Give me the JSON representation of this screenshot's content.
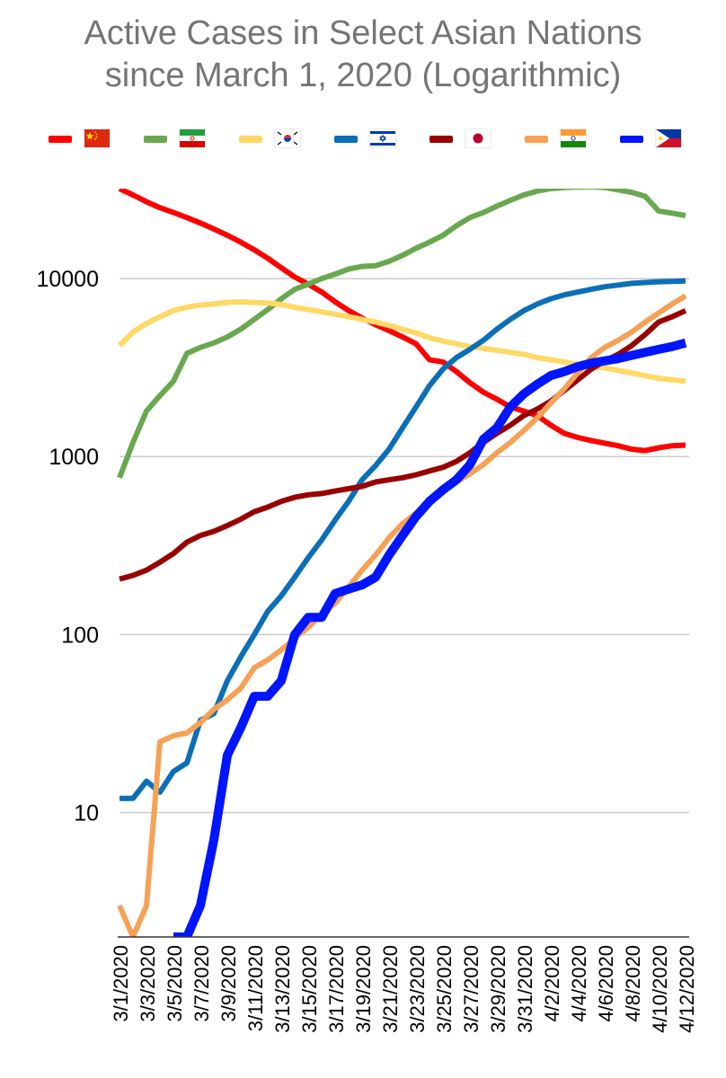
{
  "chart_data": {
    "type": "line",
    "title": "Active Cases in Select Asian Nations since March 1, 2020 (Logarithmic)",
    "title_lines": [
      "Active Cases in Select Asian Nations",
      "since March 1, 2020 (Logarithmic)"
    ],
    "scale": "log",
    "ylim": [
      2,
      32000
    ],
    "yticks": [
      10,
      100,
      1000,
      10000
    ],
    "ytick_labels": [
      "10",
      "100",
      "1000",
      "10000"
    ],
    "grid": true,
    "legend_position": "top",
    "x": [
      "3/1/2020",
      "3/2/2020",
      "3/3/2020",
      "3/4/2020",
      "3/5/2020",
      "3/6/2020",
      "3/7/2020",
      "3/8/2020",
      "3/9/2020",
      "3/10/2020",
      "3/11/2020",
      "3/12/2020",
      "3/13/2020",
      "3/14/2020",
      "3/15/2020",
      "3/16/2020",
      "3/17/2020",
      "3/18/2020",
      "3/19/2020",
      "3/20/2020",
      "3/21/2020",
      "3/22/2020",
      "3/23/2020",
      "3/24/2020",
      "3/25/2020",
      "3/26/2020",
      "3/27/2020",
      "3/28/2020",
      "3/29/2020",
      "3/30/2020",
      "3/31/2020",
      "4/1/2020",
      "4/2/2020",
      "4/3/2020",
      "4/4/2020",
      "4/5/2020",
      "4/6/2020",
      "4/7/2020",
      "4/8/2020",
      "4/9/2020",
      "4/10/2020",
      "4/11/2020",
      "4/12/2020"
    ],
    "xtick_labels": [
      "3/1/2020",
      "3/3/2020",
      "3/5/2020",
      "3/7/2020",
      "3/9/2020",
      "3/11/2020",
      "3/13/2020",
      "3/15/2020",
      "3/17/2020",
      "3/19/2020",
      "3/21/2020",
      "3/23/2020",
      "3/25/2020",
      "3/27/2020",
      "3/29/2020",
      "3/31/2020",
      "4/2/2020",
      "4/4/2020",
      "4/6/2020",
      "4/8/2020",
      "4/10/2020",
      "4/12/2020"
    ],
    "series": [
      {
        "flag": "china",
        "color": "#ff0000",
        "values": [
          32000,
          29500,
          27000,
          25000,
          23500,
          22000,
          20500,
          19000,
          17500,
          16000,
          14500,
          13000,
          11500,
          10200,
          9300,
          8400,
          7400,
          6600,
          6000,
          5500,
          5100,
          4700,
          4300,
          3500,
          3400,
          3000,
          2600,
          2300,
          2100,
          1900,
          1800,
          1700,
          1500,
          1350,
          1280,
          1230,
          1190,
          1150,
          1100,
          1080,
          1120,
          1150,
          1160
        ]
      },
      {
        "flag": "iran",
        "color": "#6aa84f",
        "values": [
          760,
          1200,
          1800,
          2200,
          2650,
          3800,
          4100,
          4350,
          4700,
          5200,
          5900,
          6700,
          7700,
          8700,
          9300,
          10000,
          10600,
          11300,
          11700,
          11800,
          12500,
          13500,
          14800,
          16000,
          17500,
          19800,
          22000,
          23500,
          25500,
          27500,
          29500,
          31000,
          32000,
          32500,
          32700,
          32800,
          32500,
          31500,
          30500,
          29000,
          24000,
          23300,
          22600
        ]
      },
      {
        "flag": "south-korea",
        "color": "#ffd966",
        "values": [
          4200,
          5000,
          5600,
          6100,
          6600,
          6900,
          7100,
          7200,
          7350,
          7400,
          7350,
          7300,
          7150,
          6900,
          6700,
          6500,
          6300,
          6100,
          5900,
          5700,
          5450,
          5200,
          4950,
          4650,
          4450,
          4300,
          4150,
          4050,
          3950,
          3850,
          3750,
          3600,
          3500,
          3400,
          3300,
          3200,
          3150,
          3050,
          2950,
          2850,
          2750,
          2700,
          2650
        ]
      },
      {
        "flag": "israel",
        "color": "#0b6fb8",
        "values": [
          12,
          12,
          15,
          13,
          17,
          19,
          33,
          36,
          55,
          75,
          100,
          135,
          165,
          210,
          270,
          340,
          440,
          560,
          740,
          890,
          1100,
          1450,
          1900,
          2500,
          3100,
          3600,
          4000,
          4500,
          5200,
          5900,
          6600,
          7200,
          7700,
          8100,
          8400,
          8700,
          9000,
          9200,
          9400,
          9500,
          9600,
          9650,
          9700
        ]
      },
      {
        "flag": "japan",
        "color": "#990000",
        "values": [
          205,
          215,
          230,
          255,
          285,
          330,
          360,
          380,
          410,
          445,
          490,
          520,
          560,
          590,
          610,
          620,
          640,
          660,
          680,
          720,
          740,
          760,
          790,
          830,
          870,
          940,
          1050,
          1200,
          1350,
          1500,
          1700,
          1850,
          2050,
          2350,
          2700,
          3100,
          3450,
          3750,
          4200,
          4850,
          5700,
          6100,
          6600
        ]
      },
      {
        "flag": "india",
        "color": "#f6a155",
        "values": [
          3,
          2,
          3,
          25,
          27,
          28,
          32,
          38,
          43,
          50,
          65,
          72,
          82,
          95,
          110,
          130,
          150,
          185,
          230,
          280,
          350,
          420,
          480,
          560,
          640,
          720,
          800,
          900,
          1050,
          1200,
          1400,
          1650,
          2000,
          2400,
          2950,
          3600,
          4100,
          4500,
          5000,
          5700,
          6400,
          7200,
          8000
        ]
      },
      {
        "flag": "philippines",
        "color": "#0015ff",
        "values": [
          null,
          null,
          null,
          null,
          2,
          2,
          3,
          7,
          21,
          30,
          45,
          45,
          55,
          100,
          125,
          125,
          170,
          180,
          190,
          210,
          280,
          360,
          460,
          560,
          650,
          740,
          900,
          1250,
          1450,
          1900,
          2250,
          2550,
          2850,
          3000,
          3200,
          3350,
          3450,
          3550,
          3700,
          3850,
          4000,
          4150,
          4350
        ]
      }
    ]
  },
  "legend": [
    {
      "flag": "china",
      "color": "#ff0000"
    },
    {
      "flag": "iran",
      "color": "#6aa84f"
    },
    {
      "flag": "south-korea",
      "color": "#ffd966"
    },
    {
      "flag": "israel",
      "color": "#0b6fb8"
    },
    {
      "flag": "japan",
      "color": "#990000"
    },
    {
      "flag": "india",
      "color": "#f6a155"
    },
    {
      "flag": "philippines",
      "color": "#0015ff"
    }
  ],
  "colors": {
    "grid": "#cccccc",
    "axis": "#333333",
    "title": "#757575",
    "tick_text": "#000000"
  }
}
